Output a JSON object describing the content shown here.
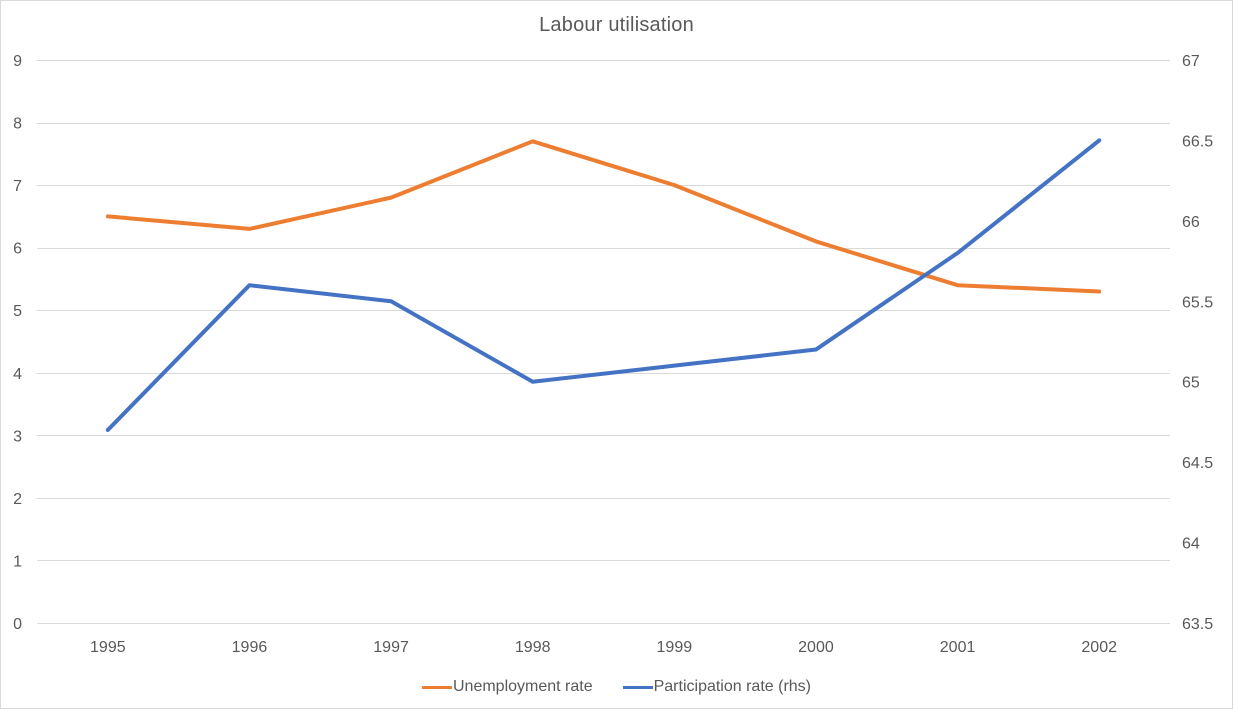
{
  "chart_data": {
    "type": "line",
    "title": "Labour utilisation",
    "categories": [
      "1995",
      "1996",
      "1997",
      "1998",
      "1999",
      "2000",
      "2001",
      "2002"
    ],
    "series": [
      {
        "name": "Unemployment rate",
        "axis": "left",
        "color": "#ED7D31",
        "values": [
          6.5,
          6.3,
          6.8,
          7.7,
          7.0,
          6.1,
          5.4,
          5.3
        ]
      },
      {
        "name": "Participation rate (rhs)",
        "axis": "right",
        "color": "#4472C4",
        "values": [
          64.7,
          65.6,
          65.5,
          65.0,
          65.1,
          65.2,
          65.8,
          66.5
        ]
      }
    ],
    "left_axis": {
      "min": 0,
      "max": 9,
      "step": 1,
      "tick_labels": [
        "0",
        "1",
        "2",
        "3",
        "4",
        "5",
        "6",
        "7",
        "8",
        "9"
      ]
    },
    "right_axis": {
      "min": 63.5,
      "max": 67,
      "step": 0.5,
      "tick_labels": [
        "63.5",
        "64",
        "64.5",
        "65",
        "65.5",
        "66",
        "66.5",
        "67"
      ]
    },
    "grid": true,
    "legend_position": "bottom",
    "colors": {
      "gridline": "#d9d9d9",
      "axis_text": "#595959",
      "title_text": "#595959",
      "border": "#d9d9d9"
    }
  }
}
